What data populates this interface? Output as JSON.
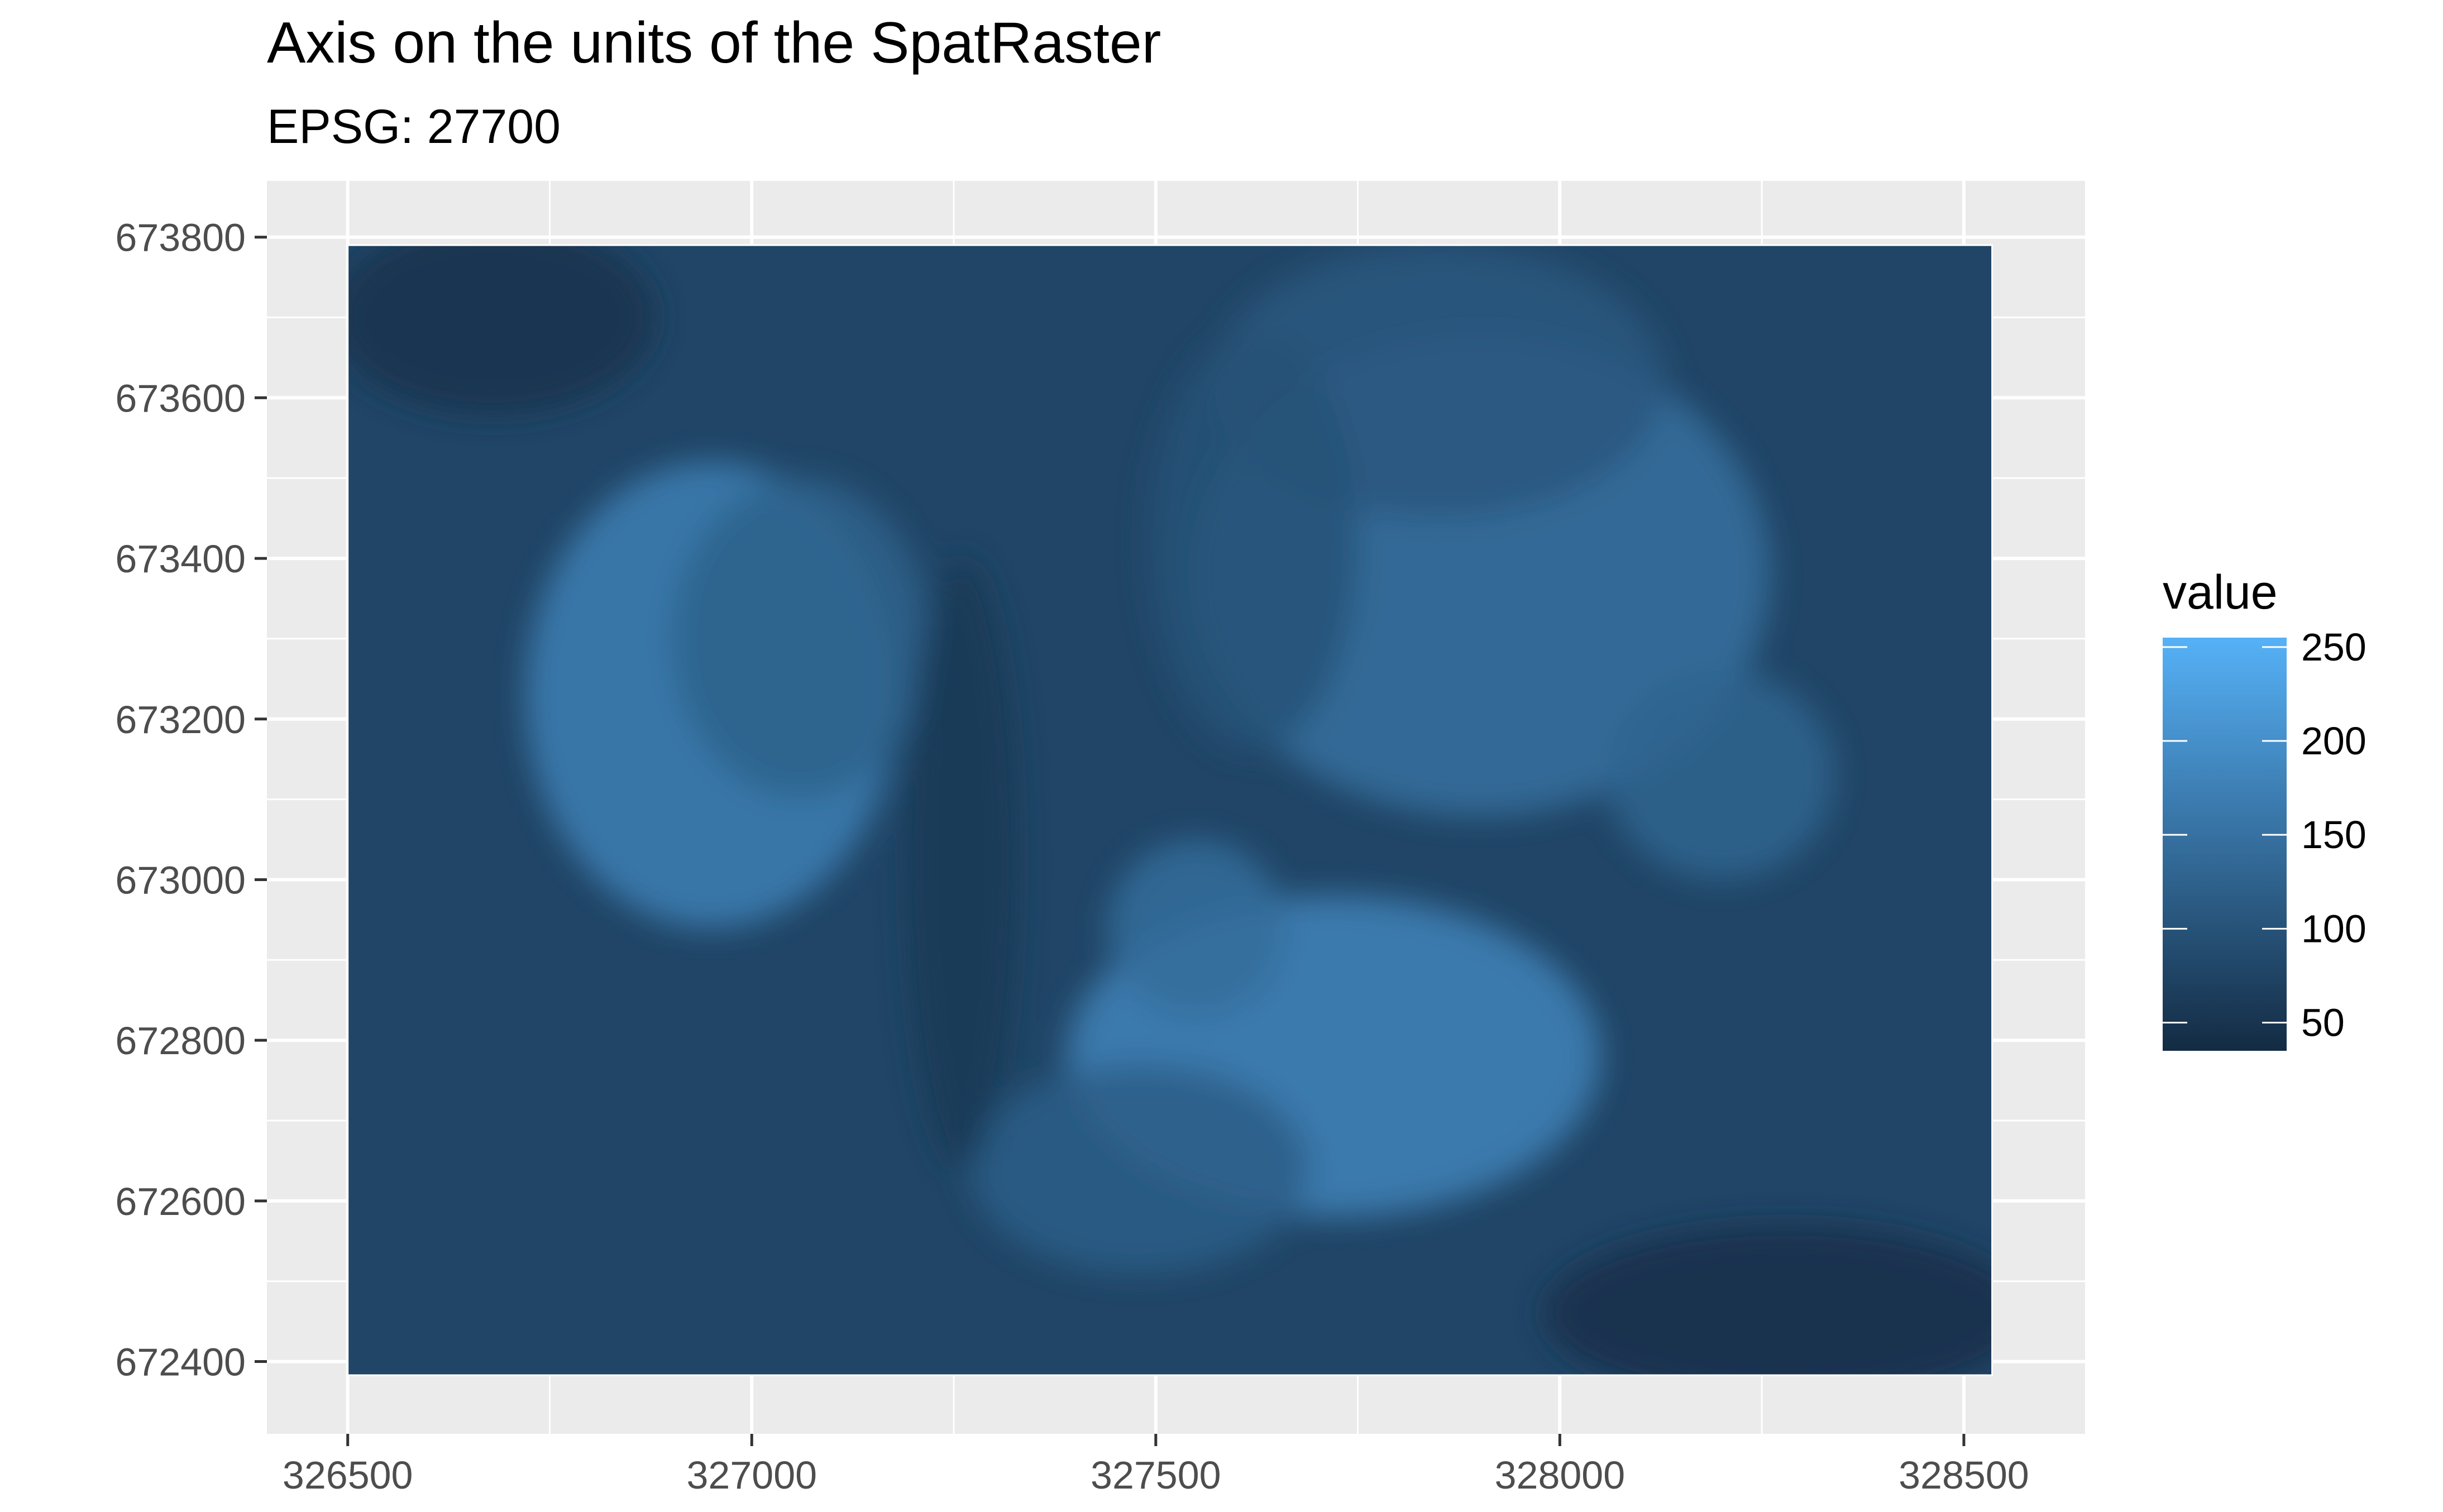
{
  "chart_data": {
    "type": "heatmap",
    "title": "Axis on the units of the SpatRaster",
    "subtitle": "EPSG: 27700",
    "xlabel": "",
    "ylabel": "",
    "xlim": [
      326400,
      328650
    ],
    "ylim": [
      672310,
      673870
    ],
    "raster_extent": {
      "xmin": 326500,
      "xmax": 328535,
      "ymin": 672383,
      "ymax": 673790
    },
    "x_ticks": [
      326500,
      327000,
      327500,
      328000,
      328500
    ],
    "x_tick_labels": [
      "326500",
      "327000",
      "327500",
      "328000",
      "328500"
    ],
    "y_ticks": [
      672400,
      672600,
      672800,
      673000,
      673200,
      673400,
      673600,
      673800
    ],
    "y_tick_labels": [
      "672400",
      "672600",
      "672800",
      "673000",
      "673200",
      "673400",
      "673600",
      "673800"
    ],
    "grid": true,
    "legend": {
      "title": "value",
      "position": "right",
      "range": [
        35,
        255
      ],
      "breaks": [
        50,
        100,
        150,
        200,
        250
      ],
      "labels": [
        "50",
        "100",
        "150",
        "200",
        "250"
      ],
      "low_color": "#132B43",
      "high_color": "#56B1F7"
    },
    "surface": {
      "base_value": 78,
      "features": [
        {
          "x": 326950,
          "y": 673230,
          "sx": 230,
          "sy": 290,
          "value": 95
        },
        {
          "x": 327060,
          "y": 673300,
          "sx": 160,
          "sy": 200,
          "value": 45
        },
        {
          "x": 327900,
          "y": 673380,
          "sx": 360,
          "sy": 300,
          "value": 70
        },
        {
          "x": 327850,
          "y": 673620,
          "sx": 280,
          "sy": 170,
          "value": 30
        },
        {
          "x": 327720,
          "y": 672780,
          "sx": 330,
          "sy": 200,
          "value": 100
        },
        {
          "x": 327550,
          "y": 672940,
          "sx": 110,
          "sy": 110,
          "value": 65
        },
        {
          "x": 327480,
          "y": 672640,
          "sx": 210,
          "sy": 130,
          "value": 40
        },
        {
          "x": 328200,
          "y": 673130,
          "sx": 140,
          "sy": 130,
          "value": 50
        },
        {
          "x": 327620,
          "y": 673420,
          "sx": 130,
          "sy": 260,
          "value": 20
        },
        {
          "x": 327260,
          "y": 673020,
          "sx": 70,
          "sy": 380,
          "value": -20
        },
        {
          "x": 326680,
          "y": 673700,
          "sx": 200,
          "sy": 120,
          "value": -30
        },
        {
          "x": 328280,
          "y": 672460,
          "sx": 300,
          "sy": 110,
          "value": -35
        }
      ]
    }
  },
  "colors": {
    "panel_background": "#EBEBEB",
    "grid_line": "#FFFFFF",
    "axis_text": "#4D4D4D",
    "title_text": "#000000",
    "legend_low": "#132B43",
    "legend_high": "#56B1F7"
  }
}
